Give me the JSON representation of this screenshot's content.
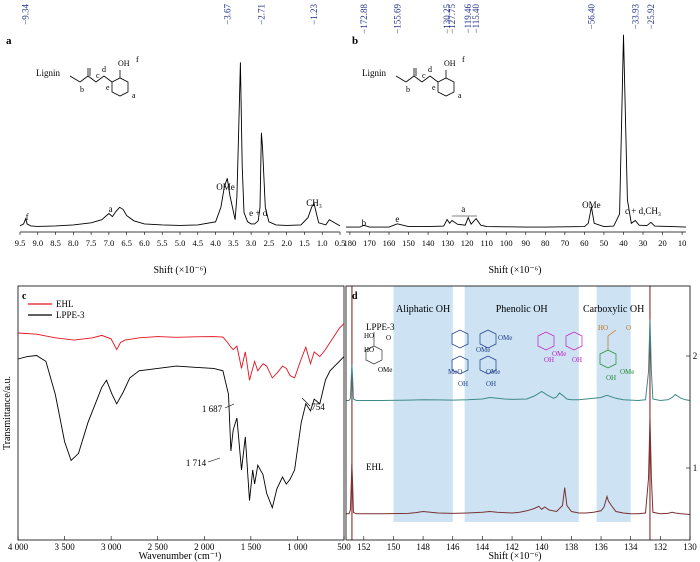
{
  "panels": [
    {
      "id": "a",
      "panel_label": "a",
      "chart_data": {
        "type": "line",
        "title": "",
        "xlabel": "Shift (×10⁻⁶)",
        "ylabel": "",
        "xlim": [
          9.5,
          0.5
        ],
        "x_reversed": true,
        "x_ticks": [
          "9.5",
          "9.0",
          "8.5",
          "8.0",
          "7.5",
          "7.0",
          "6.5",
          "6.0",
          "5.5",
          "5.0",
          "4.5",
          "4.0",
          "3.5",
          "3.0",
          "2.5",
          "2.0",
          "1.5",
          "1.0",
          "0.5"
        ],
        "peak_labels": [
          "−9.34",
          "−3.67",
          "−2.71",
          "−1.23"
        ],
        "peak_label_positions": [
          9.34,
          3.67,
          2.71,
          1.23
        ],
        "annotations": [
          {
            "text": "f",
            "x": 9.3
          },
          {
            "text": "a",
            "x": 6.95
          },
          {
            "text": "OMe",
            "x": 3.72
          },
          {
            "text": "e + d",
            "x": 2.8
          },
          {
            "text": "CH₃",
            "x": 1.23
          }
        ],
        "structure_labels": [
          "Lignin",
          "b",
          "c",
          "d",
          "e",
          "OH",
          "f",
          "a"
        ],
        "series": [
          {
            "x": [
              9.5,
              9.4,
              9.34,
              9.3,
              9.2,
              9.0,
              8.5,
              8.0,
              7.5,
              7.2,
              7.0,
              6.9,
              6.8,
              6.7,
              6.6,
              6.5,
              6.3,
              6.0,
              5.5,
              5.0,
              4.5,
              4.0,
              3.85,
              3.75,
              3.67,
              3.6,
              3.45,
              3.4,
              3.35,
              3.3,
              3.25,
              3.2,
              3.1,
              3.0,
              2.9,
              2.8,
              2.75,
              2.71,
              2.68,
              2.6,
              2.5,
              2.3,
              2.0,
              1.6,
              1.4,
              1.3,
              1.23,
              1.15,
              1.1,
              0.9,
              0.8,
              0.5
            ],
            "y": [
              2,
              4,
              9,
              4,
              2,
              1.5,
              2,
              3,
              5,
              8,
              14,
              11,
              16,
              20,
              18,
              12,
              7,
              4,
              3,
              2.5,
              3,
              6,
              20,
              40,
              48,
              32,
              8,
              30,
              95,
              160,
              60,
              15,
              6,
              4,
              4,
              7,
              20,
              92,
              78,
              20,
              6,
              3,
              2.5,
              3,
              10,
              20,
              24,
              12,
              5,
              3,
              8,
              2
            ]
          }
        ],
        "ylim": [
          0,
          170
        ]
      }
    },
    {
      "id": "b",
      "panel_label": "b",
      "chart_data": {
        "type": "line",
        "title": "",
        "xlabel": "Shift (×10⁻⁶)",
        "ylabel": "",
        "xlim": [
          182,
          8
        ],
        "x_reversed": true,
        "x_ticks": [
          "180",
          "170",
          "160",
          "150",
          "140",
          "130",
          "120",
          "110",
          "100",
          "90",
          "80",
          "70",
          "60",
          "50",
          "40",
          "30",
          "20",
          "10"
        ],
        "peak_labels": [
          "−172.88",
          "−155.69",
          "−130.25",
          "−127.75",
          "−119.46",
          "−115.40",
          "−56.40",
          "−33.93",
          "−25.92"
        ],
        "peak_label_positions": [
          172.88,
          155.69,
          130.25,
          127.75,
          119.46,
          115.4,
          56.4,
          33.93,
          25.92
        ],
        "annotations": [
          {
            "text": "b",
            "x": 172.88
          },
          {
            "text": "e",
            "x": 155.69
          },
          {
            "text": "a",
            "x": 122
          },
          {
            "text": "OMe",
            "x": 56.4
          },
          {
            "text": "c + d,CH₃",
            "x": 30
          }
        ],
        "structure_labels": [
          "Lignin",
          "b",
          "c",
          "d",
          "e",
          "OH",
          "f",
          "a"
        ],
        "series": [
          {
            "x": [
              182,
              175,
              172.88,
              170,
              160,
              155.69,
              150,
              140,
              132,
              130.25,
              129,
              127.75,
              125,
              121,
              119.46,
              118,
              115.4,
              113,
              110,
              100,
              90,
              80,
              70,
              60,
              58,
              56.4,
              55,
              50,
              45,
              42,
              40,
              38,
              36,
              33.93,
              32,
              28,
              25.92,
              24,
              15,
              8
            ],
            "y": [
              2,
              2,
              6,
              2,
              2,
              9,
              3,
              3,
              4,
              18,
              10,
              16,
              8,
              6,
              22,
              8,
              20,
              6,
              3,
              2.5,
              2,
              2,
              2.5,
              3,
              10,
              45,
              10,
              3,
              4,
              30,
              410,
              60,
              10,
              16,
              6,
              5,
              12,
              4,
              3,
              2
            ]
          }
        ],
        "ylim": [
          0,
          420
        ]
      }
    },
    {
      "id": "c",
      "panel_label": "c",
      "chart_data": {
        "type": "line",
        "title": "",
        "xlabel": "Wavenumber (cm⁻¹)",
        "ylabel": "Transmittance/a.u.",
        "xlim": [
          4000,
          500
        ],
        "x_reversed": true,
        "x_ticks": [
          "4 000",
          "3 500",
          "3 000",
          "2 500",
          "2 000",
          "1 500",
          "1 000",
          "500"
        ],
        "annotations": [
          {
            "text": "1 687",
            "x": 1687
          },
          {
            "text": "1 714",
            "x": 1714
          },
          {
            "text": "754",
            "x": 754
          }
        ],
        "legend_position": "top-left",
        "series": [
          {
            "name": "EHL",
            "color": "#e3121b",
            "x": [
              4000,
              3800,
              3600,
              3400,
              3200,
              3100,
              3000,
              2940,
              2900,
              2850,
              2700,
              2500,
              2300,
              2100,
              1900,
              1800,
              1750,
              1714,
              1690,
              1650,
              1600,
              1560,
              1515,
              1460,
              1425,
              1370,
              1330,
              1270,
              1220,
              1160,
              1120,
              1080,
              1030,
              960,
              910,
              860,
              820,
              760,
              700,
              650,
              600,
              550,
              500
            ],
            "y": [
              86,
              85.5,
              84,
              83,
              84,
              85,
              83.5,
              79,
              82,
              83,
              84,
              84.5,
              84.2,
              84.4,
              84.5,
              84.3,
              82,
              80,
              79,
              80.5,
              71,
              78,
              66,
              74,
              70,
              73,
              72,
              67,
              69,
              72,
              71,
              68,
              67,
              75,
              80,
              73,
              78,
              76,
              79,
              82,
              85,
              88,
              90
            ]
          },
          {
            "name": "LPPE-3",
            "color": "#000000",
            "x": [
              4000,
              3900,
              3800,
              3700,
              3600,
              3500,
              3430,
              3350,
              3250,
              3100,
              3050,
              2990,
              2940,
              2870,
              2800,
              2700,
              2500,
              2300,
              2100,
              1900,
              1800,
              1740,
              1714,
              1690,
              1650,
              1600,
              1560,
              1515,
              1480,
              1460,
              1425,
              1370,
              1330,
              1270,
              1220,
              1160,
              1120,
              1080,
              1030,
              960,
              910,
              860,
              820,
              760,
              700,
              650,
              600,
              550,
              500
            ],
            "y": [
              75,
              76,
              76.5,
              74,
              60,
              40,
              32,
              35,
              48,
              63,
              66,
              60,
              56,
              61,
              67,
              70,
              71,
              72,
              71.5,
              71,
              70,
              60,
              36,
              45,
              50,
              28,
              42,
              15,
              28,
              22,
              30,
              26,
              18,
              12,
              20,
              25,
              22,
              24,
              28,
              48,
              56,
              53,
              58,
              56,
              66,
              70,
              72,
              74,
              76
            ]
          }
        ],
        "ylim": [
          0,
          100
        ]
      }
    },
    {
      "id": "d",
      "panel_label": "d",
      "chart_data": {
        "type": "line",
        "title": "",
        "xlabel": "Shift (×10⁻⁶)",
        "ylabel": "",
        "xlim": [
          153.2,
          130.0
        ],
        "x_reversed": true,
        "x_ticks": [
          "152",
          "150",
          "148",
          "146",
          "144",
          "142",
          "140",
          "138",
          "136",
          "134",
          "132",
          "130"
        ],
        "right_ticks": [
          "2",
          "1"
        ],
        "region_labels": [
          {
            "text": "Aliphatic OH",
            "from": 150,
            "to": 146
          },
          {
            "text": "Phenolic OH",
            "from": 145.2,
            "to": 137.5
          },
          {
            "text": "Carboxylic OH",
            "from": 136.3,
            "to": 134
          }
        ],
        "region_color": "#cde3f4",
        "vertical_lines_x": [
          152.8,
          132.7
        ],
        "vertical_line_color": "#8b2a2a",
        "structure_labels": [
          "HO",
          "HO",
          "O",
          "OMe",
          "OMe",
          "OMe",
          "MeO",
          "OMe",
          "OH",
          "OH",
          "OMe",
          "OH",
          "OH",
          "HO",
          "O",
          "OH",
          "OMe"
        ],
        "series": [
          {
            "name": "LPPE-3",
            "color": "#3e8a88",
            "x": [
              153.2,
              153,
              152.9,
              152.85,
              152.8,
              152.75,
              152.7,
              152.5,
              151,
              149,
              148,
              147,
              146,
              145,
              144,
              143.5,
              143,
              142.5,
              142,
              141,
              140.5,
              140,
              139.6,
              139.2,
              139,
              138.8,
              138.6,
              138.3,
              138,
              137.5,
              137,
              136.5,
              136,
              135.6,
              135.3,
              135,
              134.5,
              134,
              133.5,
              133,
              132.8,
              132.7,
              132.6,
              132.5,
              132,
              131.5,
              131.2,
              131,
              130.6,
              130.3,
              130
            ],
            "y": [
              2,
              2,
              5,
              30,
              50,
              30,
              4,
              2,
              2,
              2.5,
              3,
              2.8,
              2.5,
              3,
              4,
              6,
              5,
              4,
              3.5,
              4,
              8,
              14,
              9,
              5,
              7,
              12,
              9,
              4,
              3,
              3,
              4,
              5,
              6,
              9,
              7,
              5,
              3,
              2.5,
              2,
              3,
              40,
              110,
              40,
              4,
              2,
              3,
              6,
              10,
              5,
              3,
              2
            ]
          },
          {
            "name": "EHL",
            "color": "#7a3232",
            "x": [
              153.2,
              153,
              152.9,
              152.85,
              152.8,
              152.75,
              152.7,
              152.5,
              151,
              149,
              148.5,
              148,
              147.5,
              147,
              146,
              145,
              144,
              143.5,
              143,
              142,
              141.5,
              141,
              140.5,
              140.2,
              140,
              139.8,
              139.5,
              139,
              138.6,
              138.45,
              138.3,
              138,
              137.5,
              137,
              136.5,
              136,
              135.8,
              135.6,
              135.5,
              135.3,
              135,
              134.5,
              134,
              133.5,
              133,
              132.8,
              132.7,
              132.6,
              132.5,
              132,
              131.5,
              131.2,
              131,
              130.6,
              130.3,
              130
            ],
            "y": [
              3,
              3,
              8,
              40,
              70,
              40,
              5,
              3,
              3,
              3.5,
              4.5,
              6,
              5,
              4,
              3.5,
              4,
              5,
              6,
              5,
              4,
              5,
              7,
              10,
              13,
              9,
              12,
              8,
              6,
              14,
              38,
              14,
              6,
              4,
              4,
              5,
              7,
              12,
              26,
              20,
              14,
              6,
              4,
              3,
              3,
              4,
              50,
              130,
              50,
              5,
              3,
              3.5,
              5,
              4,
              3,
              2.5,
              2
            ]
          }
        ],
        "ylim": [
          0,
          130
        ]
      }
    }
  ]
}
